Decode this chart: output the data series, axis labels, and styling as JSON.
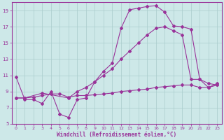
{
  "xlabel": "Windchill (Refroidissement éolien,°C)",
  "bg_color": "#cde8e8",
  "grid_color": "#aacccc",
  "line_color": "#993399",
  "xlim": [
    -0.5,
    23.5
  ],
  "ylim": [
    5,
    20
  ],
  "yticks": [
    5,
    7,
    9,
    11,
    13,
    15,
    17,
    19
  ],
  "xticks": [
    0,
    1,
    2,
    3,
    4,
    5,
    6,
    7,
    8,
    9,
    10,
    11,
    12,
    13,
    14,
    15,
    16,
    17,
    18,
    19,
    20,
    21,
    22,
    23
  ],
  "curve1_x": [
    0,
    1,
    2,
    3,
    4,
    5,
    6,
    7,
    8,
    9,
    10,
    11,
    12,
    13,
    14,
    15,
    16,
    17,
    18,
    19,
    20,
    21,
    22,
    23
  ],
  "curve1_y": [
    10.8,
    8.0,
    8.0,
    7.5,
    9.0,
    6.2,
    5.8,
    8.0,
    8.2,
    10.2,
    11.5,
    12.5,
    16.8,
    19.1,
    19.3,
    19.5,
    19.6,
    18.8,
    17.1,
    17.0,
    16.7,
    10.5,
    9.5,
    10.0
  ],
  "curve2_x": [
    0,
    1,
    3,
    6,
    7,
    8,
    9,
    10,
    11,
    12,
    13,
    14,
    15,
    16,
    17,
    18,
    19,
    20,
    21,
    22,
    23
  ],
  "curve2_y": [
    8.2,
    8.2,
    8.8,
    8.2,
    9.0,
    9.5,
    10.2,
    11.0,
    11.8,
    13.0,
    14.0,
    15.0,
    16.0,
    16.8,
    17.0,
    16.5,
    16.0,
    10.5,
    10.5,
    10.0,
    9.8
  ],
  "curve3_x": [
    0,
    1,
    2,
    3,
    4,
    5,
    6,
    7,
    8,
    9,
    10,
    11,
    12,
    13,
    14,
    15,
    16,
    17,
    18,
    19,
    20,
    21,
    22,
    23
  ],
  "curve3_y": [
    8.2,
    8.2,
    8.3,
    8.5,
    8.7,
    8.7,
    8.3,
    8.5,
    8.5,
    8.6,
    8.7,
    8.8,
    9.0,
    9.1,
    9.2,
    9.3,
    9.5,
    9.6,
    9.7,
    9.8,
    9.8,
    9.5,
    9.5,
    9.8
  ]
}
